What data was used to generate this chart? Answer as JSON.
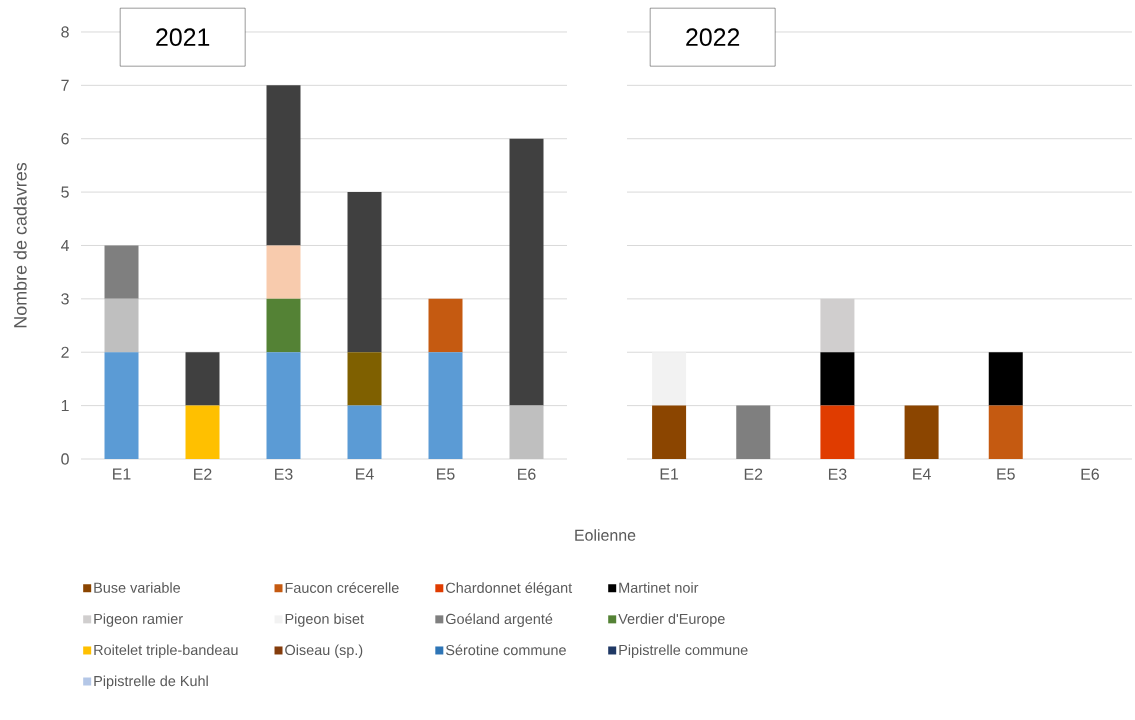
{
  "chart_data": [
    {
      "type": "bar",
      "title": "2021",
      "ylabel": "Nombre de cadavres",
      "categories": [
        "E1",
        "E2",
        "E3",
        "E4",
        "E5",
        "E6"
      ],
      "stacked": true,
      "ylim": [
        0,
        8
      ],
      "yticks": [
        0,
        1,
        2,
        3,
        4,
        5,
        6,
        7,
        8
      ],
      "grid": "y",
      "legend": false,
      "series": [
        {
          "color": "#5b9bd5",
          "values": [
            2,
            0,
            2,
            1,
            2,
            0
          ]
        },
        {
          "color": "#ffc000",
          "values": [
            0,
            1,
            0,
            0,
            0,
            0
          ]
        },
        {
          "color": "#bfbfbf",
          "values": [
            1,
            0,
            0,
            0,
            0,
            1
          ]
        },
        {
          "color": "#7f6000",
          "values": [
            0,
            0,
            0,
            1,
            0,
            0
          ]
        },
        {
          "color": "#548235",
          "values": [
            0,
            0,
            1,
            0,
            0,
            0
          ]
        },
        {
          "color": "#c55a11",
          "values": [
            0,
            0,
            0,
            0,
            1,
            0
          ]
        },
        {
          "color": "#7f7f7f",
          "values": [
            1,
            0,
            0,
            0,
            0,
            0
          ]
        },
        {
          "color": "#f8cbad",
          "values": [
            0,
            0,
            1,
            0,
            0,
            0
          ]
        },
        {
          "color": "#404040",
          "values": [
            0,
            1,
            3,
            3,
            0,
            5
          ]
        }
      ]
    },
    {
      "type": "bar",
      "title": "2022",
      "xlabel": "Eolienne",
      "categories": [
        "E1",
        "E2",
        "E3",
        "E4",
        "E5",
        "E6"
      ],
      "stacked": true,
      "ylim": [
        0,
        8
      ],
      "yticks": [
        0,
        1,
        2,
        3,
        4,
        5,
        6,
        7,
        8
      ],
      "grid": "y",
      "legend": "bottom",
      "tick_labels": "x",
      "series": [
        {
          "name": "Buse variable",
          "color": "#8b4500",
          "values": [
            1,
            0,
            0,
            1,
            0,
            0
          ]
        },
        {
          "name": "Faucon crécerelle",
          "color": "#c55a11",
          "values": [
            0,
            0,
            0,
            0,
            1,
            0
          ]
        },
        {
          "name": "Chardonnet élégant",
          "color": "#e03c00",
          "values": [
            0,
            0,
            1,
            0,
            0,
            0
          ]
        },
        {
          "name": "Martinet noir",
          "color": "#000000",
          "values": [
            0,
            0,
            1,
            0,
            1,
            0
          ]
        },
        {
          "name": "Pigeon ramier",
          "color": "#d0cece",
          "values": [
            0,
            0,
            1,
            0,
            0,
            0
          ]
        },
        {
          "name": "Pigeon biset",
          "color": "#f2f2f2",
          "values": [
            1,
            0,
            0,
            0,
            0,
            0
          ]
        },
        {
          "name": "Goéland argenté",
          "color": "#7f7f7f",
          "values": [
            0,
            1,
            0,
            0,
            0,
            0
          ]
        },
        {
          "name": "Verdier d'Europe",
          "color": "#548235",
          "values": [
            0,
            0,
            0,
            0,
            0,
            0
          ]
        },
        {
          "name": "Roitelet triple-bandeau",
          "color": "#ffc000",
          "values": [
            0,
            0,
            0,
            0,
            0,
            0
          ]
        },
        {
          "name": "Oiseau (sp.)",
          "color": "#843c0c",
          "values": [
            0,
            0,
            0,
            0,
            0,
            0
          ]
        },
        {
          "name": "Sérotine commune",
          "color": "#2e75b6",
          "values": [
            0,
            0,
            0,
            0,
            0,
            0
          ]
        },
        {
          "name": "Pipistrelle commune",
          "color": "#1f3864",
          "values": [
            0,
            0,
            0,
            0,
            0,
            0
          ]
        },
        {
          "name": "Pipistrelle de Kuhl",
          "color": "#b4c7e7",
          "values": [
            0,
            0,
            0,
            0,
            0,
            0
          ]
        }
      ]
    }
  ]
}
